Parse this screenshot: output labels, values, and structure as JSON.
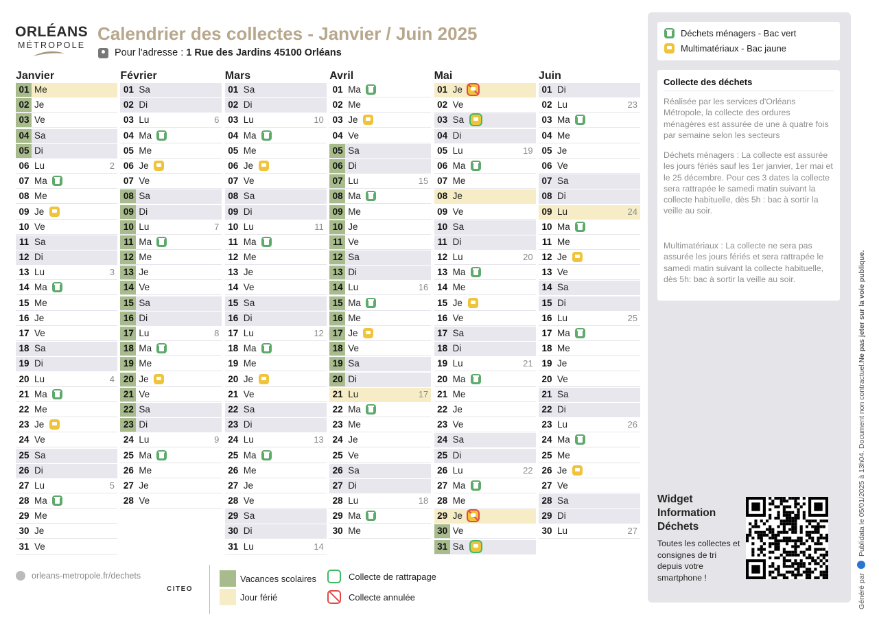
{
  "logo": {
    "line1": "ORLÉANS",
    "line2": "MÉTROPOLE"
  },
  "header": {
    "title": "Calendrier des collectes - Janvier / Juin 2025",
    "address_label": "Pour l'adresse :",
    "address": "1 Rue des Jardins 45100 Orléans"
  },
  "legend": {
    "vert": "Déchets ménagers - Bac vert",
    "jaune": "Multimatériaux - Bac jaune"
  },
  "info": {
    "title": "Collecte des déchets",
    "p1": "Réalisée par les services d'Orléans Métropole, la collecte des ordures ménagères est assurée de une à quatre fois par semaine selon les secteurs",
    "p2": "Déchets ménagers : La collecte est assurée les jours fériés sauf les 1er janvier, 1er mai et le 25 décembre. Pour ces 3 dates la collecte sera rattrapée le samedi matin suivant la collecte habituelle, dès 5h : bac à sortir la veille au soir.",
    "p3": "Multimatériaux : La collecte ne sera pas assurée les jours fériés et sera rattrapée le samedi matin suivant la collecte habituelle, dès 5h: bac à sortir la veille au soir."
  },
  "widget": {
    "title": "Widget Information Déchets",
    "desc": "Toutes les collectes et consignes de tri depuis votre smartphone !"
  },
  "vertical_note": {
    "gen": "Généré par",
    "pub": "Publidata",
    "date": "le 05/01/2025 à 13h04.",
    "nc": "Document non contractuel.",
    "bold": "Ne pas jeter sur la voie publique."
  },
  "footer": {
    "url": "orleans-metropole.fr/dechets",
    "citeo": "CITEO",
    "vacances": "Vacances scolaires",
    "ferie": "Jour férié",
    "rattrapage": "Collecte de rattrapage",
    "annulee": "Collecte annulée"
  },
  "colors": {
    "vacances": "#a8bb8c",
    "ferie": "#f6edc6",
    "weekend": "#e8e7ee",
    "vert": "#5ea96c",
    "jaune": "#f0c43a",
    "rattrapage": "#3fb964",
    "annulee": "#e04a4a",
    "title": "#b7a78c"
  },
  "months": [
    {
      "name": "Janvier",
      "days": [
        {
          "n": "01",
          "d": "Me",
          "hol": true,
          "vac": true
        },
        {
          "n": "02",
          "d": "Je",
          "vac": true
        },
        {
          "n": "03",
          "d": "Ve",
          "vac": true
        },
        {
          "n": "04",
          "d": "Sa",
          "vac": true
        },
        {
          "n": "05",
          "d": "Di",
          "vac": true
        },
        {
          "n": "06",
          "d": "Lu",
          "wk": "2"
        },
        {
          "n": "07",
          "d": "Ma",
          "b": "vert"
        },
        {
          "n": "08",
          "d": "Me"
        },
        {
          "n": "09",
          "d": "Je",
          "b": "jaune"
        },
        {
          "n": "10",
          "d": "Ve"
        },
        {
          "n": "11",
          "d": "Sa"
        },
        {
          "n": "12",
          "d": "Di"
        },
        {
          "n": "13",
          "d": "Lu",
          "wk": "3"
        },
        {
          "n": "14",
          "d": "Ma",
          "b": "vert"
        },
        {
          "n": "15",
          "d": "Me"
        },
        {
          "n": "16",
          "d": "Je"
        },
        {
          "n": "17",
          "d": "Ve"
        },
        {
          "n": "18",
          "d": "Sa"
        },
        {
          "n": "19",
          "d": "Di"
        },
        {
          "n": "20",
          "d": "Lu",
          "wk": "4"
        },
        {
          "n": "21",
          "d": "Ma",
          "b": "vert"
        },
        {
          "n": "22",
          "d": "Me"
        },
        {
          "n": "23",
          "d": "Je",
          "b": "jaune"
        },
        {
          "n": "24",
          "d": "Ve"
        },
        {
          "n": "25",
          "d": "Sa"
        },
        {
          "n": "26",
          "d": "Di"
        },
        {
          "n": "27",
          "d": "Lu",
          "wk": "5"
        },
        {
          "n": "28",
          "d": "Ma",
          "b": "vert"
        },
        {
          "n": "29",
          "d": "Me"
        },
        {
          "n": "30",
          "d": "Je"
        },
        {
          "n": "31",
          "d": "Ve"
        }
      ]
    },
    {
      "name": "Février",
      "days": [
        {
          "n": "01",
          "d": "Sa"
        },
        {
          "n": "02",
          "d": "Di"
        },
        {
          "n": "03",
          "d": "Lu",
          "wk": "6"
        },
        {
          "n": "04",
          "d": "Ma",
          "b": "vert"
        },
        {
          "n": "05",
          "d": "Me"
        },
        {
          "n": "06",
          "d": "Je",
          "b": "jaune"
        },
        {
          "n": "07",
          "d": "Ve"
        },
        {
          "n": "08",
          "d": "Sa",
          "vac": true
        },
        {
          "n": "09",
          "d": "Di",
          "vac": true
        },
        {
          "n": "10",
          "d": "Lu",
          "wk": "7",
          "vac": true
        },
        {
          "n": "11",
          "d": "Ma",
          "b": "vert",
          "vac": true
        },
        {
          "n": "12",
          "d": "Me",
          "vac": true
        },
        {
          "n": "13",
          "d": "Je",
          "vac": true
        },
        {
          "n": "14",
          "d": "Ve",
          "vac": true
        },
        {
          "n": "15",
          "d": "Sa",
          "vac": true
        },
        {
          "n": "16",
          "d": "Di",
          "vac": true
        },
        {
          "n": "17",
          "d": "Lu",
          "wk": "8",
          "vac": true
        },
        {
          "n": "18",
          "d": "Ma",
          "b": "vert",
          "vac": true
        },
        {
          "n": "19",
          "d": "Me",
          "vac": true
        },
        {
          "n": "20",
          "d": "Je",
          "b": "jaune",
          "vac": true
        },
        {
          "n": "21",
          "d": "Ve",
          "vac": true
        },
        {
          "n": "22",
          "d": "Sa",
          "vac": true
        },
        {
          "n": "23",
          "d": "Di",
          "vac": true
        },
        {
          "n": "24",
          "d": "Lu",
          "wk": "9"
        },
        {
          "n": "25",
          "d": "Ma",
          "b": "vert"
        },
        {
          "n": "26",
          "d": "Me"
        },
        {
          "n": "27",
          "d": "Je"
        },
        {
          "n": "28",
          "d": "Ve"
        }
      ]
    },
    {
      "name": "Mars",
      "days": [
        {
          "n": "01",
          "d": "Sa"
        },
        {
          "n": "02",
          "d": "Di"
        },
        {
          "n": "03",
          "d": "Lu",
          "wk": "10"
        },
        {
          "n": "04",
          "d": "Ma",
          "b": "vert"
        },
        {
          "n": "05",
          "d": "Me"
        },
        {
          "n": "06",
          "d": "Je",
          "b": "jaune"
        },
        {
          "n": "07",
          "d": "Ve"
        },
        {
          "n": "08",
          "d": "Sa"
        },
        {
          "n": "09",
          "d": "Di"
        },
        {
          "n": "10",
          "d": "Lu",
          "wk": "11"
        },
        {
          "n": "11",
          "d": "Ma",
          "b": "vert"
        },
        {
          "n": "12",
          "d": "Me"
        },
        {
          "n": "13",
          "d": "Je"
        },
        {
          "n": "14",
          "d": "Ve"
        },
        {
          "n": "15",
          "d": "Sa"
        },
        {
          "n": "16",
          "d": "Di"
        },
        {
          "n": "17",
          "d": "Lu",
          "wk": "12"
        },
        {
          "n": "18",
          "d": "Ma",
          "b": "vert"
        },
        {
          "n": "19",
          "d": "Me"
        },
        {
          "n": "20",
          "d": "Je",
          "b": "jaune"
        },
        {
          "n": "21",
          "d": "Ve"
        },
        {
          "n": "22",
          "d": "Sa"
        },
        {
          "n": "23",
          "d": "Di"
        },
        {
          "n": "24",
          "d": "Lu",
          "wk": "13"
        },
        {
          "n": "25",
          "d": "Ma",
          "b": "vert"
        },
        {
          "n": "26",
          "d": "Me"
        },
        {
          "n": "27",
          "d": "Je"
        },
        {
          "n": "28",
          "d": "Ve"
        },
        {
          "n": "29",
          "d": "Sa"
        },
        {
          "n": "30",
          "d": "Di"
        },
        {
          "n": "31",
          "d": "Lu",
          "wk": "14"
        }
      ]
    },
    {
      "name": "Avril",
      "days": [
        {
          "n": "01",
          "d": "Ma",
          "b": "vert"
        },
        {
          "n": "02",
          "d": "Me"
        },
        {
          "n": "03",
          "d": "Je",
          "b": "jaune"
        },
        {
          "n": "04",
          "d": "Ve"
        },
        {
          "n": "05",
          "d": "Sa",
          "vac": true
        },
        {
          "n": "06",
          "d": "Di",
          "vac": true
        },
        {
          "n": "07",
          "d": "Lu",
          "wk": "15",
          "vac": true
        },
        {
          "n": "08",
          "d": "Ma",
          "b": "vert",
          "vac": true
        },
        {
          "n": "09",
          "d": "Me",
          "vac": true
        },
        {
          "n": "10",
          "d": "Je",
          "vac": true
        },
        {
          "n": "11",
          "d": "Ve",
          "vac": true
        },
        {
          "n": "12",
          "d": "Sa",
          "vac": true
        },
        {
          "n": "13",
          "d": "Di",
          "vac": true
        },
        {
          "n": "14",
          "d": "Lu",
          "wk": "16",
          "vac": true
        },
        {
          "n": "15",
          "d": "Ma",
          "b": "vert",
          "vac": true
        },
        {
          "n": "16",
          "d": "Me",
          "vac": true
        },
        {
          "n": "17",
          "d": "Je",
          "b": "jaune",
          "vac": true
        },
        {
          "n": "18",
          "d": "Ve",
          "vac": true
        },
        {
          "n": "19",
          "d": "Sa",
          "vac": true
        },
        {
          "n": "20",
          "d": "Di",
          "vac": true
        },
        {
          "n": "21",
          "d": "Lu",
          "wk": "17",
          "hol": true
        },
        {
          "n": "22",
          "d": "Ma",
          "b": "vert"
        },
        {
          "n": "23",
          "d": "Me"
        },
        {
          "n": "24",
          "d": "Je"
        },
        {
          "n": "25",
          "d": "Ve"
        },
        {
          "n": "26",
          "d": "Sa"
        },
        {
          "n": "27",
          "d": "Di"
        },
        {
          "n": "28",
          "d": "Lu",
          "wk": "18"
        },
        {
          "n": "29",
          "d": "Ma",
          "b": "vert"
        },
        {
          "n": "30",
          "d": "Me"
        }
      ]
    },
    {
      "name": "Mai",
      "days": [
        {
          "n": "01",
          "d": "Je",
          "b": "jaune",
          "st": "ann",
          "hol": true
        },
        {
          "n": "02",
          "d": "Ve"
        },
        {
          "n": "03",
          "d": "Sa",
          "b": "jaune",
          "st": "rattr"
        },
        {
          "n": "04",
          "d": "Di"
        },
        {
          "n": "05",
          "d": "Lu",
          "wk": "19"
        },
        {
          "n": "06",
          "d": "Ma",
          "b": "vert"
        },
        {
          "n": "07",
          "d": "Me"
        },
        {
          "n": "08",
          "d": "Je",
          "hol": true
        },
        {
          "n": "09",
          "d": "Ve"
        },
        {
          "n": "10",
          "d": "Sa"
        },
        {
          "n": "11",
          "d": "Di"
        },
        {
          "n": "12",
          "d": "Lu",
          "wk": "20"
        },
        {
          "n": "13",
          "d": "Ma",
          "b": "vert"
        },
        {
          "n": "14",
          "d": "Me"
        },
        {
          "n": "15",
          "d": "Je",
          "b": "jaune"
        },
        {
          "n": "16",
          "d": "Ve"
        },
        {
          "n": "17",
          "d": "Sa"
        },
        {
          "n": "18",
          "d": "Di"
        },
        {
          "n": "19",
          "d": "Lu",
          "wk": "21"
        },
        {
          "n": "20",
          "d": "Ma",
          "b": "vert"
        },
        {
          "n": "21",
          "d": "Me"
        },
        {
          "n": "22",
          "d": "Je"
        },
        {
          "n": "23",
          "d": "Ve"
        },
        {
          "n": "24",
          "d": "Sa"
        },
        {
          "n": "25",
          "d": "Di"
        },
        {
          "n": "26",
          "d": "Lu",
          "wk": "22"
        },
        {
          "n": "27",
          "d": "Ma",
          "b": "vert"
        },
        {
          "n": "28",
          "d": "Me"
        },
        {
          "n": "29",
          "d": "Je",
          "b": "jaune",
          "st": "ann",
          "hol": true
        },
        {
          "n": "30",
          "d": "Ve",
          "vac": true
        },
        {
          "n": "31",
          "d": "Sa",
          "b": "jaune",
          "st": "rattr",
          "vac": true
        }
      ]
    },
    {
      "name": "Juin",
      "days": [
        {
          "n": "01",
          "d": "Di"
        },
        {
          "n": "02",
          "d": "Lu",
          "wk": "23"
        },
        {
          "n": "03",
          "d": "Ma",
          "b": "vert"
        },
        {
          "n": "04",
          "d": "Me"
        },
        {
          "n": "05",
          "d": "Je"
        },
        {
          "n": "06",
          "d": "Ve"
        },
        {
          "n": "07",
          "d": "Sa"
        },
        {
          "n": "08",
          "d": "Di"
        },
        {
          "n": "09",
          "d": "Lu",
          "wk": "24",
          "hol": true
        },
        {
          "n": "10",
          "d": "Ma",
          "b": "vert"
        },
        {
          "n": "11",
          "d": "Me"
        },
        {
          "n": "12",
          "d": "Je",
          "b": "jaune"
        },
        {
          "n": "13",
          "d": "Ve"
        },
        {
          "n": "14",
          "d": "Sa"
        },
        {
          "n": "15",
          "d": "Di"
        },
        {
          "n": "16",
          "d": "Lu",
          "wk": "25"
        },
        {
          "n": "17",
          "d": "Ma",
          "b": "vert"
        },
        {
          "n": "18",
          "d": "Me"
        },
        {
          "n": "19",
          "d": "Je"
        },
        {
          "n": "20",
          "d": "Ve"
        },
        {
          "n": "21",
          "d": "Sa"
        },
        {
          "n": "22",
          "d": "Di"
        },
        {
          "n": "23",
          "d": "Lu",
          "wk": "26"
        },
        {
          "n": "24",
          "d": "Ma",
          "b": "vert"
        },
        {
          "n": "25",
          "d": "Me"
        },
        {
          "n": "26",
          "d": "Je",
          "b": "jaune"
        },
        {
          "n": "27",
          "d": "Ve"
        },
        {
          "n": "28",
          "d": "Sa"
        },
        {
          "n": "29",
          "d": "Di"
        },
        {
          "n": "30",
          "d": "Lu",
          "wk": "27"
        }
      ]
    }
  ]
}
